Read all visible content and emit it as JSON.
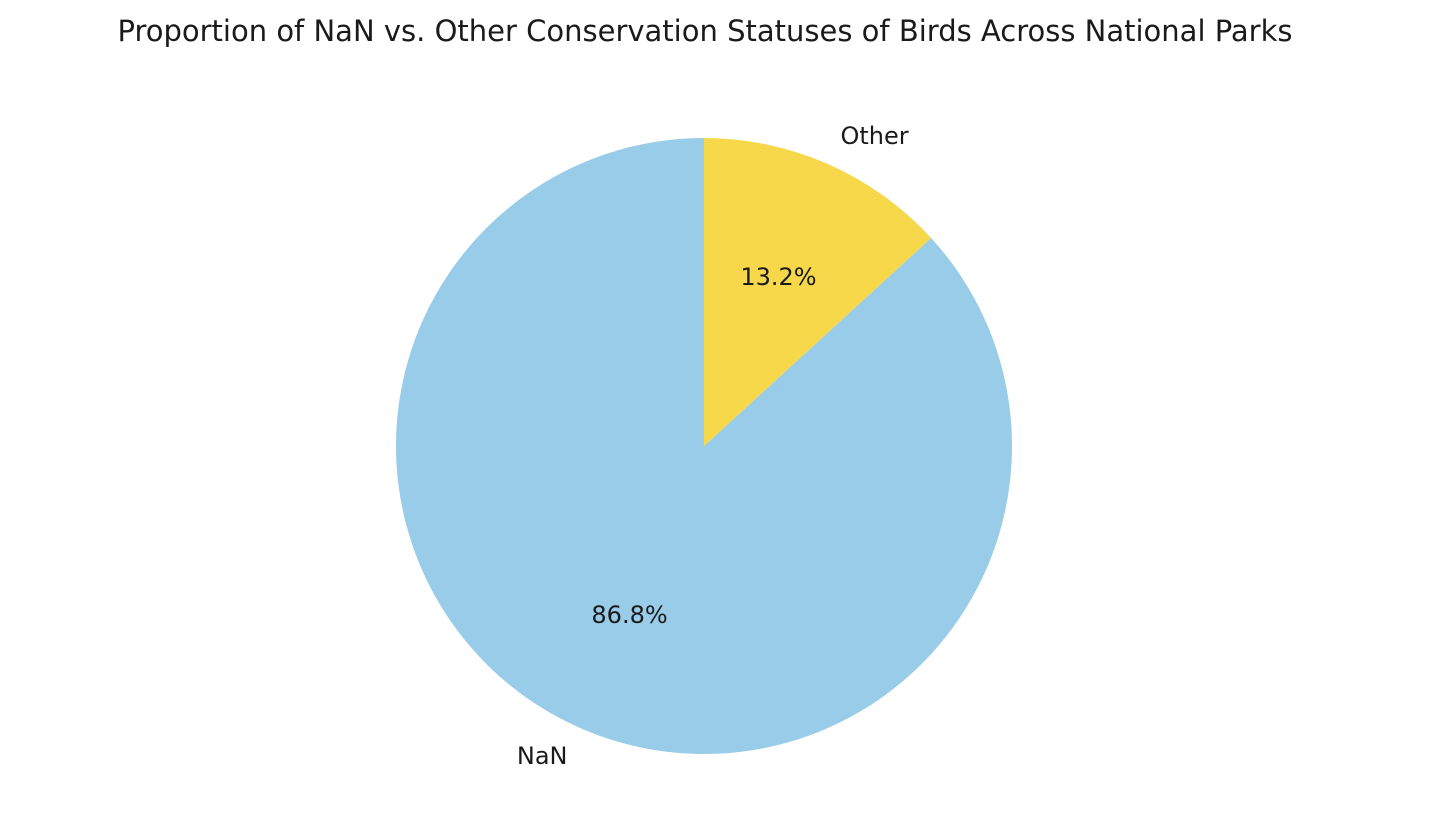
{
  "chart_data": {
    "type": "pie",
    "title": "Proportion of NaN vs. Other Conservation Statuses of Birds Across National Parks",
    "start_angle": "90° (12 o'clock), counter-clockwise",
    "slices": [
      {
        "label": "NaN",
        "value": 86.8,
        "value_label": "86.8%",
        "color": "#99cce8"
      },
      {
        "label": "Other",
        "value": 13.2,
        "value_label": "13.2%",
        "color": "#f7d84a"
      }
    ]
  }
}
